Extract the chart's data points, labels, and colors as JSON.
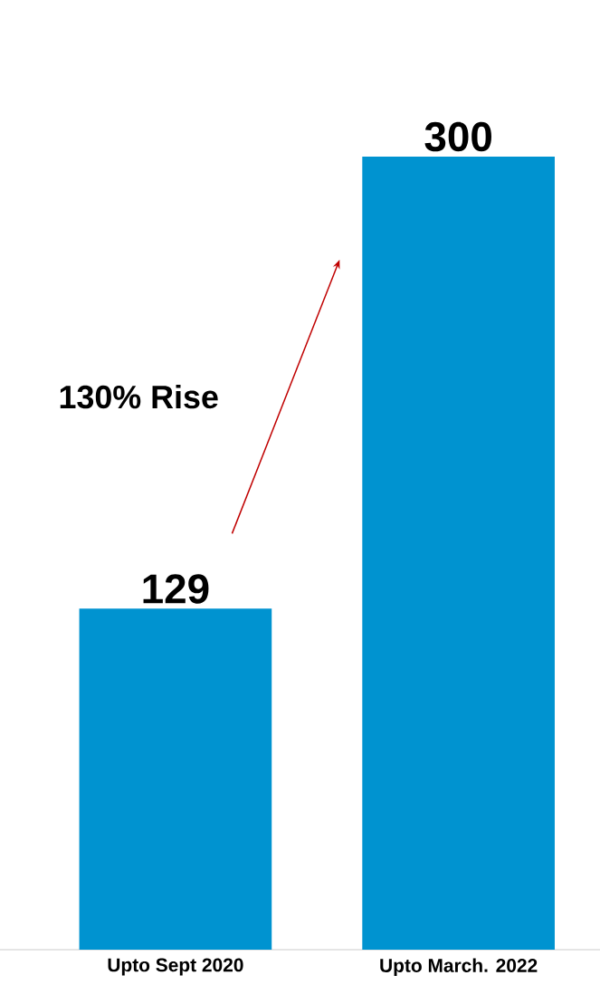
{
  "chart_data": {
    "type": "bar",
    "categories": [
      "Upto Sept 2020",
      "Upto March. 2022"
    ],
    "values": [
      129,
      300
    ],
    "color": "#0093d0",
    "data_labels": true,
    "annotations": [
      "130% Rise"
    ]
  }
}
